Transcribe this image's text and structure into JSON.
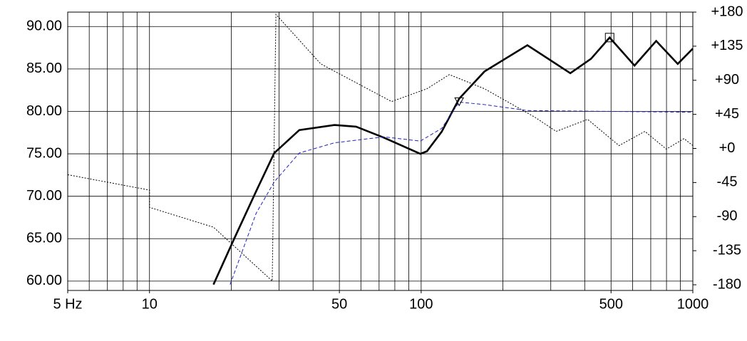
{
  "chart_data": {
    "type": "line",
    "xscale": "log",
    "xlim": [
      5,
      1000
    ],
    "ylim": [
      58.9,
      91.7
    ],
    "y2lim": [
      -187.5,
      180
    ],
    "xticks": [
      {
        "value": 5,
        "label": "5 Hz"
      },
      10,
      50,
      100,
      500,
      1000
    ],
    "xgrid": [
      5,
      6,
      7,
      8,
      9,
      10,
      20,
      30,
      40,
      50,
      60,
      70,
      80,
      90,
      100,
      200,
      300,
      400,
      500,
      600,
      700,
      800,
      900,
      1000
    ],
    "yticks": [
      {
        "value": 60,
        "label": "60.00"
      },
      {
        "value": 65,
        "label": "65.00"
      },
      {
        "value": 70,
        "label": "70.00"
      },
      {
        "value": 75,
        "label": "75.00"
      },
      {
        "value": 80,
        "label": "80.00"
      },
      {
        "value": 85,
        "label": "85.00"
      },
      {
        "value": 90,
        "label": "90.00"
      }
    ],
    "y2ticks": [
      {
        "value": 180,
        "label": "+180"
      },
      {
        "value": 135,
        "label": "+135"
      },
      {
        "value": 90,
        "label": "+90"
      },
      {
        "value": 45,
        "label": "+45"
      },
      {
        "value": 0,
        "label": "+0"
      },
      -45,
      -90,
      -135,
      -180
    ],
    "grid": true,
    "series": [
      {
        "color": "#000000",
        "width": 2.6,
        "dash": "none",
        "x": [
          17.2,
          20.5,
          24.7,
          28.8,
          35.6,
          48,
          57.6,
          73,
          99.3,
          105,
          119,
          138,
          171,
          246,
          354,
          422,
          494,
          610,
          733,
          880,
          1000
        ],
        "values": [
          59.6,
          65.0,
          70.6,
          75.1,
          77.8,
          78.4,
          78.2,
          76.9,
          75.0,
          75.3,
          77.6,
          81.5,
          84.7,
          87.8,
          84.5,
          86.2,
          88.7,
          85.4,
          88.3,
          85.6,
          87.4
        ]
      },
      {
        "color": "#2020c0",
        "width": 1,
        "dash": "5 3",
        "x": [
          19.8,
          24.7,
          28.8,
          35.6,
          48,
          73,
          99.3,
          119,
          138,
          171,
          246,
          1000
        ],
        "values": [
          59.6,
          68.0,
          71.7,
          75.1,
          76.3,
          77.0,
          76.5,
          78.0,
          81.1,
          80.8,
          80.1,
          79.9
        ]
      },
      {
        "color": "#000000",
        "width": 1,
        "dash": "2 2",
        "axis": "y2",
        "x": [
          5,
          10,
          10,
          17.2,
          28.3,
          29.2,
          42.7,
          77.8,
          105,
          127,
          171,
          262,
          314,
          410,
          535,
          666,
          799,
          928,
          1000
        ],
        "values": [
          -34.7,
          -55,
          -77.8,
          -104,
          -175,
          177,
          111.6,
          61.9,
          78.8,
          97.5,
          78.8,
          41.3,
          22.5,
          38.4,
          3.75,
          22.5,
          -0.9,
          13,
          3.75
        ]
      }
    ],
    "markers": [
      {
        "series": 1,
        "index": 8,
        "shape": "triangle"
      },
      {
        "series": 0,
        "index": 16,
        "shape": "square"
      }
    ]
  }
}
